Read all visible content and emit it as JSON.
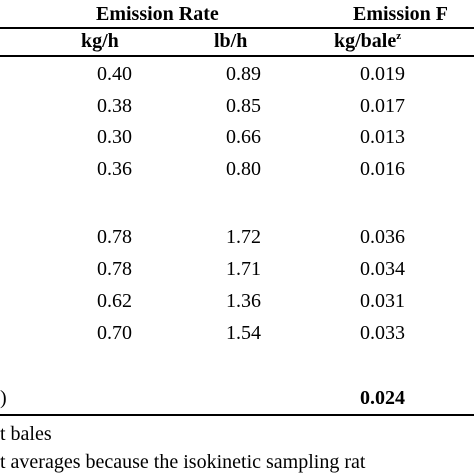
{
  "header": {
    "emission_rate": "Emission Rate",
    "emission_factor_partial": "Emission F",
    "unit_kgh": "kg/h",
    "unit_lbh": "lb/h",
    "unit_kgbale": "kg/bale",
    "unit_kgbale_sup": "z"
  },
  "rows_group1": [
    {
      "kgh": "0.40",
      "lbh": "0.89",
      "kgbale": "0.019"
    },
    {
      "kgh": "0.38",
      "lbh": "0.85",
      "kgbale": "0.017"
    },
    {
      "kgh": "0.30",
      "lbh": "0.66",
      "kgbale": "0.013"
    },
    {
      "kgh": "0.36",
      "lbh": "0.80",
      "kgbale": "0.016"
    }
  ],
  "rows_group2": [
    {
      "kgh": "0.78",
      "lbh": "1.72",
      "kgbale": "0.036"
    },
    {
      "kgh": "0.78",
      "lbh": "1.71",
      "kgbale": "0.034"
    },
    {
      "kgh": "0.62",
      "lbh": "1.36",
      "kgbale": "0.031"
    },
    {
      "kgh": "0.70",
      "lbh": "1.54",
      "kgbale": "0.033"
    }
  ],
  "total": {
    "left_fragment": ")",
    "kgbale": "0.024"
  },
  "footnotes": {
    "line1": "t bales",
    "line2": "t averages because the isokinetic sampling rat"
  }
}
